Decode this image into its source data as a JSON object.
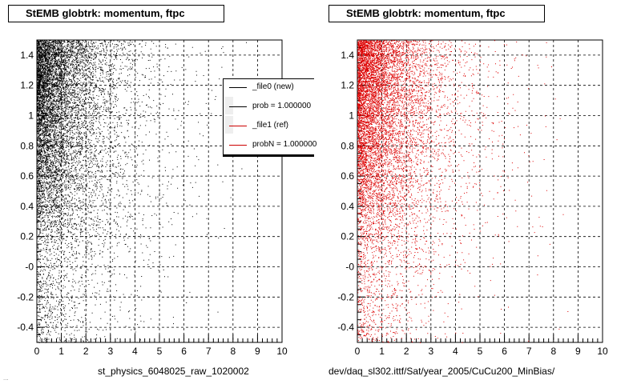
{
  "chart_data": [
    {
      "type": "scatter",
      "title": "StEMB globtrk: momentum, ftpc",
      "xlabel": "st_physics_6048025_raw_1020002",
      "ylabel": "",
      "xlim": [
        0,
        10
      ],
      "ylim": [
        -0.5,
        1.5
      ],
      "xticks": [
        "0",
        "1",
        "2",
        "3",
        "4",
        "5",
        "6",
        "7",
        "8",
        "9",
        "10"
      ],
      "yticks": [
        "-0.4",
        "-0.2",
        "-0",
        "0.2",
        "0.4",
        "0.6",
        "0.8",
        "1",
        "1.2",
        "1.4"
      ],
      "grid": true,
      "color": "#000000",
      "legend": {
        "placement": "top-right",
        "entries": [
          {
            "label": "_file0 (new)",
            "color": "#000000"
          },
          {
            "label": "prob = 1.000000",
            "color": "#000000"
          },
          {
            "label": "_file1 (ref)",
            "color": "#cc0000"
          },
          {
            "label": "probN = 1.000000",
            "color": "#cc0000"
          }
        ]
      }
    },
    {
      "type": "scatter",
      "title": "StEMB globtrk: momentum, ftpc",
      "xlabel": "dev/daq_sl302.ittf/Sat/year_2005/CuCu200_MinBias/",
      "ylabel": "",
      "xlim": [
        0,
        10
      ],
      "ylim": [
        -0.5,
        1.5
      ],
      "xticks": [
        "0",
        "1",
        "2",
        "3",
        "4",
        "5",
        "6",
        "7",
        "8",
        "9",
        "10"
      ],
      "yticks": [
        "-0.4",
        "-0.2",
        "-0",
        "0.2",
        "0.4",
        "0.6",
        "0.8",
        "1",
        "1.2",
        "1.4"
      ],
      "grid": true,
      "color": "#dd0000"
    }
  ],
  "footer": "..."
}
